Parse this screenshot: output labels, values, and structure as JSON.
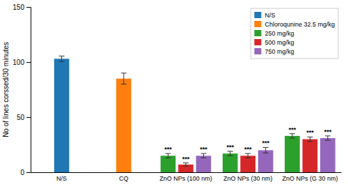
{
  "chart_data": {
    "type": "bar",
    "y_label": "No of lines corssed/30 minutes",
    "categories": [
      "N/S",
      "CQ",
      "ZnO NPs (100 nm)",
      "ZnO NPs (30 nm)",
      "ZnO NPs (G 30 nm)"
    ],
    "series": [
      {
        "name": "N/S",
        "values": [
          103,
          null,
          null,
          null,
          null
        ],
        "errors": [
          2.5,
          null,
          null,
          null,
          null
        ]
      },
      {
        "name": "Chloroqunine 32.5 mg/kg",
        "values": [
          null,
          85,
          null,
          null,
          null
        ],
        "errors": [
          null,
          5.0,
          null,
          null,
          null
        ]
      },
      {
        "name": "250 mg/kg",
        "values": [
          null,
          null,
          15,
          17,
          33
        ],
        "errors": [
          null,
          null,
          2.0,
          2.0,
          2.0
        ],
        "annotations": [
          null,
          null,
          "***",
          "***",
          "***"
        ]
      },
      {
        "name": "500 mg/kg",
        "values": [
          null,
          null,
          7,
          15,
          30
        ],
        "errors": [
          null,
          null,
          1.5,
          2.0,
          2.0
        ],
        "annotations": [
          null,
          null,
          "***",
          "***",
          "***"
        ]
      },
      {
        "name": "750 mg/kg",
        "values": [
          null,
          null,
          15,
          20,
          31
        ],
        "errors": [
          null,
          null,
          2.0,
          2.5,
          2.0
        ],
        "annotations": [
          null,
          null,
          "***",
          "***",
          "***"
        ]
      }
    ],
    "ylim": [
      0,
      150
    ],
    "yticks": [
      0,
      50,
      100,
      150
    ],
    "grid": false,
    "legend": "upper right"
  }
}
